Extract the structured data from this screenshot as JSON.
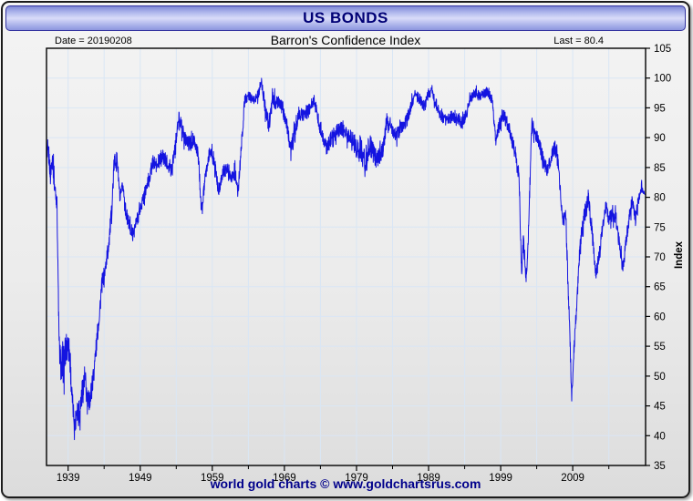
{
  "window": {
    "title": "US BONDS"
  },
  "header": {
    "date_label": "Date = 20190208",
    "title": "Barron's Confidence Index",
    "last_label": "Last = 80.4"
  },
  "footer": {
    "credit": "world gold charts © www.goldchartsrus.com"
  },
  "colors": {
    "line": "#1414e0",
    "grid": "#d9e6f5",
    "frame": "#000000",
    "tick_text": "#000000",
    "title_text": "#000075",
    "footer_text": "#00008b"
  },
  "chart_data": {
    "type": "line",
    "title": "Barron's Confidence Index",
    "xlabel": "",
    "ylabel": "Index",
    "date": "20190208",
    "last_value": 80.4,
    "x_range": [
      1936,
      2019.1
    ],
    "ylim": [
      35,
      105
    ],
    "y_ticks": [
      35,
      40,
      45,
      50,
      55,
      60,
      65,
      70,
      75,
      80,
      85,
      90,
      95,
      100,
      105
    ],
    "x_major_ticks": [
      1939,
      1949,
      1959,
      1969,
      1979,
      1989,
      1999,
      2009
    ],
    "x_minor_ticks": [
      1944,
      1954,
      1964,
      1974,
      1984,
      1994,
      2004,
      2014
    ],
    "grid_years": [
      1939,
      1944,
      1949,
      1954,
      1959,
      1964,
      1969,
      1974,
      1979,
      1984,
      1989,
      1994,
      1999,
      2004,
      2009,
      2014
    ],
    "grid_values": [
      40,
      45,
      50,
      55,
      60,
      65,
      70,
      75,
      80,
      85,
      90,
      95,
      100
    ],
    "legend": "none",
    "series": [
      {
        "name": "Barron's Confidence Index",
        "anchors_format": "[year, value, noise_amplitude]",
        "anchors": [
          [
            1936.0,
            86,
            5
          ],
          [
            1936.3,
            87.5,
            4
          ],
          [
            1936.55,
            83.5,
            4
          ],
          [
            1936.8,
            87,
            4
          ],
          [
            1937.1,
            82,
            4
          ],
          [
            1937.45,
            79,
            3
          ],
          [
            1937.75,
            55,
            6
          ],
          [
            1938.1,
            50.5,
            7
          ],
          [
            1938.5,
            53,
            8
          ],
          [
            1938.9,
            55.5,
            7
          ],
          [
            1939.2,
            54,
            6
          ],
          [
            1939.55,
            46,
            5
          ],
          [
            1939.95,
            41.5,
            4
          ],
          [
            1940.2,
            45,
            6
          ],
          [
            1940.55,
            43.5,
            6
          ],
          [
            1940.9,
            47,
            6
          ],
          [
            1941.3,
            49.5,
            7
          ],
          [
            1941.7,
            45.5,
            5
          ],
          [
            1942.1,
            46.5,
            5
          ],
          [
            1942.5,
            50,
            5
          ],
          [
            1942.9,
            55,
            4
          ],
          [
            1943.3,
            60,
            4
          ],
          [
            1943.7,
            65.5,
            4
          ],
          [
            1944.1,
            67.5,
            3
          ],
          [
            1944.6,
            72,
            4
          ],
          [
            1945.0,
            77,
            4
          ],
          [
            1945.4,
            86,
            4
          ],
          [
            1945.8,
            86.5,
            3
          ],
          [
            1946.2,
            79.5,
            3
          ],
          [
            1946.6,
            82,
            3
          ],
          [
            1947.0,
            77.5,
            3
          ],
          [
            1947.6,
            74.8,
            3
          ],
          [
            1948.0,
            73.8,
            3
          ],
          [
            1948.5,
            76,
            3
          ],
          [
            1949.0,
            78,
            3
          ],
          [
            1949.6,
            80.5,
            3
          ],
          [
            1950.2,
            83,
            3
          ],
          [
            1950.8,
            86,
            3
          ],
          [
            1951.3,
            85,
            3
          ],
          [
            1952.0,
            87,
            3
          ],
          [
            1952.7,
            86,
            3
          ],
          [
            1953.3,
            84.5,
            3
          ],
          [
            1954.0,
            90,
            3
          ],
          [
            1954.4,
            93.5,
            3
          ],
          [
            1955.0,
            90.5,
            3
          ],
          [
            1955.7,
            89,
            3
          ],
          [
            1956.4,
            89.5,
            3
          ],
          [
            1957.0,
            87.5,
            3
          ],
          [
            1957.5,
            77.5,
            2.5
          ],
          [
            1958.1,
            84,
            3
          ],
          [
            1958.7,
            88,
            3
          ],
          [
            1959.3,
            86,
            3
          ],
          [
            1959.85,
            81,
            2.5
          ],
          [
            1960.4,
            84,
            3
          ],
          [
            1961.0,
            85,
            3
          ],
          [
            1961.7,
            83.5,
            3
          ],
          [
            1962.2,
            84,
            3
          ],
          [
            1962.55,
            80.5,
            2.5
          ],
          [
            1963.0,
            88,
            3
          ],
          [
            1963.5,
            96.5,
            2.5
          ],
          [
            1964.1,
            97,
            2
          ],
          [
            1964.7,
            96.2,
            2
          ],
          [
            1965.3,
            97,
            2.5
          ],
          [
            1965.8,
            99.3,
            2.5
          ],
          [
            1966.3,
            95.5,
            3.5
          ],
          [
            1966.85,
            92,
            3
          ],
          [
            1967.3,
            96,
            3
          ],
          [
            1967.9,
            96,
            3
          ],
          [
            1968.5,
            95.5,
            3
          ],
          [
            1969.2,
            93,
            3
          ],
          [
            1969.9,
            88,
            3
          ],
          [
            1970.4,
            91,
            3
          ],
          [
            1971.0,
            93.5,
            3
          ],
          [
            1971.7,
            94,
            3
          ],
          [
            1972.4,
            94.5,
            3
          ],
          [
            1973.1,
            96.5,
            2.5
          ],
          [
            1973.7,
            93,
            3
          ],
          [
            1974.3,
            90,
            3
          ],
          [
            1974.9,
            88,
            3
          ],
          [
            1975.5,
            90,
            3
          ],
          [
            1976.2,
            91,
            3
          ],
          [
            1976.9,
            91.5,
            3
          ],
          [
            1977.6,
            90.5,
            3
          ],
          [
            1978.3,
            90,
            3.5
          ],
          [
            1979.0,
            88.5,
            5
          ],
          [
            1979.6,
            88,
            6
          ],
          [
            1980.2,
            85.5,
            5.5
          ],
          [
            1980.8,
            89,
            5
          ],
          [
            1981.4,
            87,
            4.5
          ],
          [
            1982.0,
            86.5,
            4
          ],
          [
            1982.7,
            88.5,
            4
          ],
          [
            1983.2,
            93,
            3
          ],
          [
            1983.9,
            91.5,
            3
          ],
          [
            1984.6,
            90.5,
            3
          ],
          [
            1985.3,
            92,
            3
          ],
          [
            1986.0,
            93,
            3
          ],
          [
            1986.6,
            95.5,
            2.5
          ],
          [
            1987.2,
            97.5,
            2.5
          ],
          [
            1987.8,
            96.5,
            2.5
          ],
          [
            1988.4,
            95,
            2.5
          ],
          [
            1989.0,
            97.3,
            2.5
          ],
          [
            1989.45,
            98.2,
            2.2
          ],
          [
            1990.1,
            95.5,
            2.5
          ],
          [
            1990.8,
            93.5,
            2.5
          ],
          [
            1991.5,
            93,
            2.5
          ],
          [
            1992.2,
            93.5,
            2.5
          ],
          [
            1993.0,
            93,
            2.5
          ],
          [
            1993.7,
            92.5,
            2.5
          ],
          [
            1994.3,
            94,
            2.5
          ],
          [
            1994.8,
            96.5,
            2.2
          ],
          [
            1995.4,
            97.5,
            2.2
          ],
          [
            1996.0,
            97,
            2.2
          ],
          [
            1996.7,
            97.5,
            2.2
          ],
          [
            1997.3,
            97.6,
            2.2
          ],
          [
            1997.8,
            96.5,
            2.5
          ],
          [
            1998.3,
            89.5,
            2.5
          ],
          [
            1998.8,
            92,
            3
          ],
          [
            1999.3,
            94,
            3
          ],
          [
            1999.9,
            92.5,
            3
          ],
          [
            2000.5,
            90,
            3
          ],
          [
            2001.1,
            87,
            3
          ],
          [
            2001.55,
            83.5,
            3
          ],
          [
            2001.9,
            67.5,
            3
          ],
          [
            2002.15,
            73,
            3
          ],
          [
            2002.5,
            66,
            2.5
          ],
          [
            2002.75,
            70,
            3
          ],
          [
            2003.0,
            80,
            3
          ],
          [
            2003.3,
            92,
            2.5
          ],
          [
            2003.8,
            90.5,
            2.5
          ],
          [
            2004.3,
            89.5,
            3
          ],
          [
            2004.9,
            86,
            3
          ],
          [
            2005.5,
            84.5,
            3
          ],
          [
            2006.0,
            86.5,
            3
          ],
          [
            2006.45,
            88.5,
            3
          ],
          [
            2006.9,
            86.5,
            3
          ],
          [
            2007.3,
            81,
            3
          ],
          [
            2007.6,
            75.5,
            3
          ],
          [
            2008.0,
            77.5,
            3
          ],
          [
            2008.3,
            67,
            4
          ],
          [
            2008.6,
            57,
            4
          ],
          [
            2008.85,
            45.8,
            2
          ],
          [
            2009.1,
            53,
            3
          ],
          [
            2009.45,
            60,
            4
          ],
          [
            2009.8,
            68,
            4
          ],
          [
            2010.2,
            74,
            4
          ],
          [
            2010.7,
            77.5,
            4
          ],
          [
            2011.2,
            79.5,
            3.5
          ],
          [
            2011.7,
            74,
            4
          ],
          [
            2012.2,
            67,
            3
          ],
          [
            2012.6,
            69.5,
            3.5
          ],
          [
            2013.1,
            74.5,
            3
          ],
          [
            2013.6,
            78.5,
            3
          ],
          [
            2014.0,
            76,
            3
          ],
          [
            2014.5,
            77.5,
            3.5
          ],
          [
            2015.0,
            76.5,
            3.5
          ],
          [
            2015.45,
            72,
            3.5
          ],
          [
            2015.95,
            68,
            2.5
          ],
          [
            2016.4,
            72.5,
            3.5
          ],
          [
            2016.9,
            77,
            3
          ],
          [
            2017.25,
            79.5,
            2.5
          ],
          [
            2017.7,
            76.5,
            2.5
          ],
          [
            2018.1,
            79.5,
            2.5
          ],
          [
            2018.55,
            81.5,
            2
          ],
          [
            2019.05,
            80.4,
            0
          ]
        ]
      }
    ]
  }
}
